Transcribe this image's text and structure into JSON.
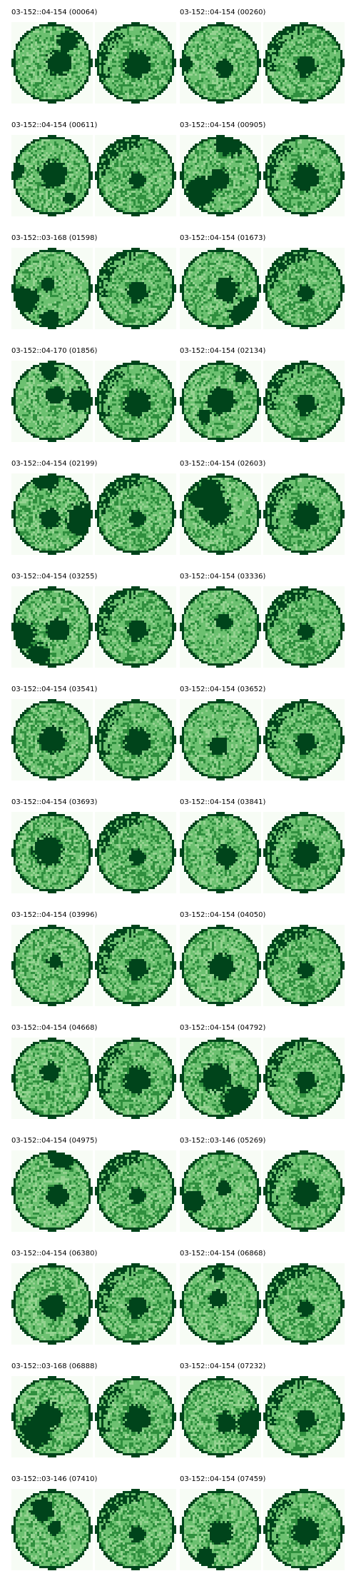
{
  "palette": {
    "background": "#f7fcf5",
    "base": "#6cc070",
    "light": "#95d391",
    "mid": "#2f8f3e",
    "dark": "#00441b"
  },
  "panels": [
    {
      "label": "03-152::04-154 (00064)"
    },
    {
      "label": "03-152::04-154 (00260)"
    },
    {
      "label": "03-152::04-154 (00611)"
    },
    {
      "label": "03-152::04-154 (00905)"
    },
    {
      "label": "03-152::03-168 (01598)"
    },
    {
      "label": "03-152::04-154 (01673)"
    },
    {
      "label": "03-152::04-170 (01856)"
    },
    {
      "label": "03-152::04-154 (02134)"
    },
    {
      "label": "03-152::04-154 (02199)"
    },
    {
      "label": "03-152::04-154 (02603)"
    },
    {
      "label": "03-152::04-154 (03255)"
    },
    {
      "label": "03-152::04-154 (03336)"
    },
    {
      "label": "03-152::04-154 (03541)"
    },
    {
      "label": "03-152::04-154 (03652)"
    },
    {
      "label": "03-152::04-154 (03693)"
    },
    {
      "label": "03-152::04-154 (03841)"
    },
    {
      "label": "03-152::04-154 (03996)"
    },
    {
      "label": "03-152::04-154 (04050)"
    },
    {
      "label": "03-152::04-154 (04668)"
    },
    {
      "label": "03-152::04-154 (04792)"
    },
    {
      "label": "03-152::04-154 (04975)"
    },
    {
      "label": "03-152::03-146 (05269)"
    },
    {
      "label": "03-152::04-154 (06380)"
    },
    {
      "label": "03-152::04-154 (06868)"
    },
    {
      "label": "03-152::03-168 (06888)"
    },
    {
      "label": "03-152::04-154 (07232)"
    },
    {
      "label": "03-152::03-146 (07410)"
    },
    {
      "label": "03-152::04-154 (07459)"
    }
  ]
}
